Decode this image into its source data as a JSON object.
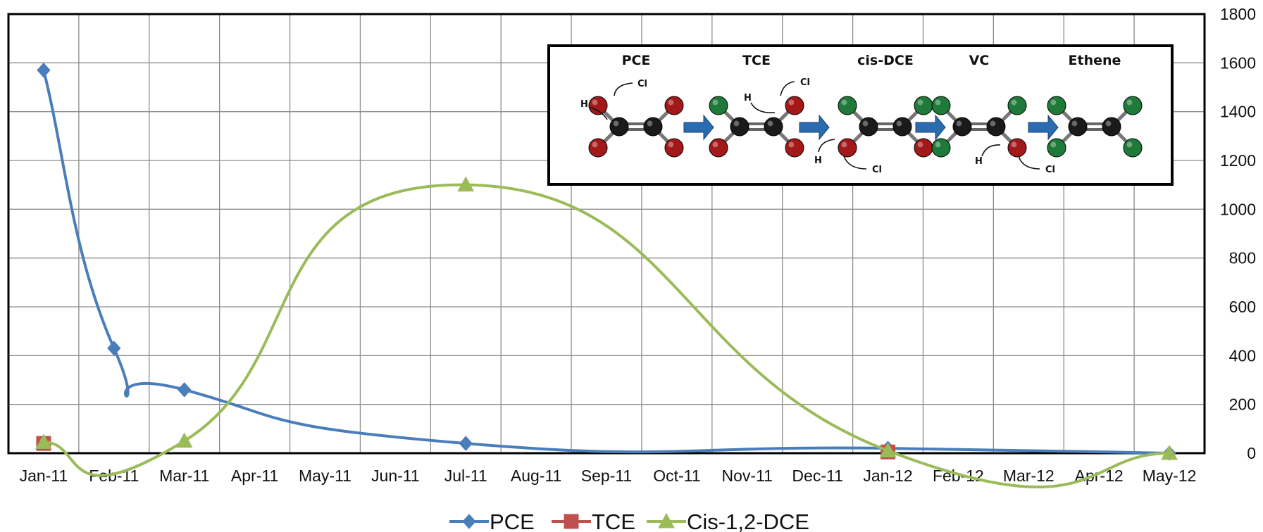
{
  "chart_data": {
    "type": "line",
    "categories": [
      "Jan-11",
      "Feb-11",
      "Mar-11",
      "Apr-11",
      "May-11",
      "Jun-11",
      "Jul-11",
      "Aug-11",
      "Sep-11",
      "Oct-11",
      "Nov-11",
      "Dec-11",
      "Jan-12",
      "Feb-12",
      "Mar-12",
      "Apr-12",
      "May-12"
    ],
    "series": [
      {
        "name": "PCE",
        "color": "#4a7ebb",
        "marker": "diamond",
        "points": [
          [
            0,
            1570
          ],
          [
            1,
            430
          ],
          [
            2,
            260
          ],
          [
            6,
            40
          ],
          [
            12,
            20
          ],
          [
            16,
            0
          ]
        ]
      },
      {
        "name": "TCE",
        "color": "#c0504d",
        "marker": "square",
        "points": [
          [
            0,
            40
          ],
          [
            12,
            5
          ]
        ]
      },
      {
        "name": "Cis-1,2-DCE",
        "color": "#9bbb59",
        "marker": "triangle",
        "points": [
          [
            0,
            45
          ],
          [
            2,
            50
          ],
          [
            6,
            1100
          ],
          [
            12,
            10
          ],
          [
            16,
            0
          ]
        ]
      }
    ],
    "ylim": [
      0,
      1800
    ],
    "yticks": [
      "0",
      "200",
      "400",
      "600",
      "800",
      "1000",
      "1200",
      "1400",
      "1600",
      "1800"
    ],
    "y_axis_side": "right",
    "grid": true,
    "legend": "bottom"
  },
  "inset": {
    "molecules": [
      "PCE",
      "TCE",
      "cis-DCE",
      "VC",
      "Ethene"
    ],
    "h_label": "H",
    "cl_label": "Cl"
  }
}
